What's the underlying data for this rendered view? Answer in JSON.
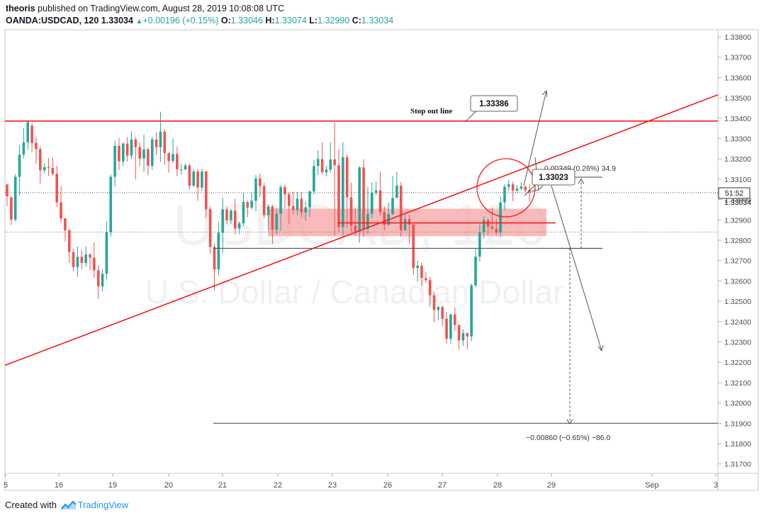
{
  "header": {
    "author": "theoris",
    "published_text": "published on TradingView.com, August 28, 2019 10:08:08 UTC",
    "symbol": "OANDA:USDCAD, 120",
    "last": "1.33034",
    "change": "+0.00196 (+0.15%)",
    "o_label": "O:",
    "o_value": "1.33046",
    "h_label": "H:",
    "h_value": "1.33074",
    "l_label": "L:",
    "l_value": "1.32990",
    "c_label": "C:",
    "c_value": "1.33034"
  },
  "watermark": {
    "symbol": "USDCAD, 120",
    "description": "U.S. Dollar / Canadian Dollar"
  },
  "footer": {
    "created_with": "Created with",
    "brand": "TradingView"
  },
  "colors": {
    "bull": "#26a69a",
    "bear": "#ef5350",
    "drawing_red": "#f21f1f",
    "zone_fill": "#f5a3a3",
    "axis_text": "#4a4a4a",
    "grid": "#f0f3fa"
  },
  "chart_data": {
    "type": "candlestick",
    "instrument": "OANDA:USDCAD",
    "timeframe": "120",
    "x_tick_labels": [
      "5",
      "16",
      "19",
      "20",
      "21",
      "22",
      "23",
      "26",
      "27",
      "28",
      "29",
      "Sep",
      "3"
    ],
    "y_range": [
      1.3164,
      1.3386
    ],
    "y_tick_labels": [
      "1.33800",
      "1.33700",
      "1.33600",
      "1.33500",
      "1.33400",
      "1.33300",
      "1.33200",
      "1.33100",
      "1.33000",
      "1.32900",
      "1.32800",
      "1.32700",
      "1.32600",
      "1.32500",
      "1.32400",
      "1.32300",
      "1.32200",
      "1.32100",
      "1.32000",
      "1.31900",
      "1.31800",
      "1.31700"
    ],
    "price_tag": "1.33034",
    "countdown_tag": "51:52",
    "candles": [
      [
        1.33074,
        1.33016,
        1.33078,
        1.32969
      ],
      [
        1.33011,
        1.32902,
        1.33018,
        1.32875
      ],
      [
        1.32902,
        1.33112,
        1.33126,
        1.32891
      ],
      [
        1.33112,
        1.33221,
        1.33268,
        1.33018
      ],
      [
        1.33221,
        1.33282,
        1.33352,
        1.33203
      ],
      [
        1.33282,
        1.3338,
        1.3339,
        1.33246
      ],
      [
        1.33364,
        1.33279,
        1.33376,
        1.33231
      ],
      [
        1.33279,
        1.33248,
        1.33307,
        1.33177
      ],
      [
        1.33248,
        1.33144,
        1.33263,
        1.33079
      ],
      [
        1.33144,
        1.33159,
        1.33179,
        1.33127
      ],
      [
        1.33159,
        1.33155,
        1.33203,
        1.33115
      ],
      [
        1.33155,
        1.33127,
        1.33208,
        1.33117
      ],
      [
        1.33127,
        1.32986,
        1.33166,
        1.32965
      ],
      [
        1.32986,
        1.32907,
        1.33067,
        1.32888
      ],
      [
        1.32907,
        1.32849,
        1.3291,
        1.32794
      ],
      [
        1.32849,
        1.32742,
        1.32858,
        1.32689
      ],
      [
        1.32742,
        1.32668,
        1.32756,
        1.32646
      ],
      [
        1.32668,
        1.32718,
        1.3277,
        1.32619
      ],
      [
        1.32718,
        1.32688,
        1.32753,
        1.32658
      ],
      [
        1.32688,
        1.3273,
        1.32771,
        1.3267
      ],
      [
        1.3273,
        1.32714,
        1.32737,
        1.32652
      ],
      [
        1.32714,
        1.32652,
        1.3279,
        1.32615
      ],
      [
        1.32652,
        1.32573,
        1.32678,
        1.32511
      ],
      [
        1.32573,
        1.32635,
        1.32657,
        1.32549
      ],
      [
        1.32635,
        1.32839,
        1.32894,
        1.32606
      ],
      [
        1.32839,
        1.33112,
        1.33124,
        1.32817
      ],
      [
        1.33112,
        1.33264,
        1.3329,
        1.33063
      ],
      [
        1.33264,
        1.33188,
        1.33302,
        1.33146
      ],
      [
        1.33188,
        1.33275,
        1.33281,
        1.33165
      ],
      [
        1.33275,
        1.33216,
        1.33307,
        1.33186
      ],
      [
        1.33216,
        1.33295,
        1.33336,
        1.33199
      ],
      [
        1.33295,
        1.33258,
        1.33307,
        1.33099
      ],
      [
        1.33258,
        1.33202,
        1.33281,
        1.33165
      ],
      [
        1.33202,
        1.33247,
        1.33319,
        1.33136
      ],
      [
        1.33247,
        1.33166,
        1.33256,
        1.33119
      ],
      [
        1.33166,
        1.33295,
        1.33309,
        1.33146
      ],
      [
        1.33295,
        1.33257,
        1.33331,
        1.33218
      ],
      [
        1.33257,
        1.33334,
        1.33432,
        1.33186
      ],
      [
        1.33334,
        1.33229,
        1.33345,
        1.33171
      ],
      [
        1.33229,
        1.3319,
        1.33231,
        1.33131
      ],
      [
        1.3319,
        1.33224,
        1.33301,
        1.33179
      ],
      [
        1.33224,
        1.33148,
        1.33259,
        1.33116
      ],
      [
        1.33148,
        1.33148,
        1.33177,
        1.33123
      ],
      [
        1.33148,
        1.33168,
        1.33178,
        1.33145
      ],
      [
        1.33168,
        1.33068,
        1.33177,
        1.33051
      ],
      [
        1.33068,
        1.33138,
        1.33149,
        1.33062
      ],
      [
        1.33138,
        1.33059,
        1.33151,
        1.32994
      ],
      [
        1.33059,
        1.33138,
        1.33152,
        1.33041
      ],
      [
        1.33138,
        1.32953,
        1.33142,
        1.32909
      ],
      [
        1.32953,
        1.32767,
        1.32963,
        1.32735
      ],
      [
        1.32767,
        1.32656,
        1.32783,
        1.32553
      ],
      [
        1.32656,
        1.32837,
        1.32891,
        1.32628
      ],
      [
        1.32837,
        1.32951,
        1.3301,
        1.32737
      ],
      [
        1.32951,
        1.32898,
        1.32962,
        1.32879
      ],
      [
        1.32898,
        1.32946,
        1.32955,
        1.32881
      ],
      [
        1.32946,
        1.32858,
        1.33003,
        1.32829
      ],
      [
        1.32858,
        1.32883,
        1.32892,
        1.3283
      ],
      [
        1.32883,
        1.32988,
        1.33033,
        1.3287
      ],
      [
        1.32988,
        1.3296,
        1.32996,
        1.32912
      ],
      [
        1.3296,
        1.32994,
        1.33037,
        1.32951
      ],
      [
        1.32994,
        1.33103,
        1.33122,
        1.32941
      ],
      [
        1.33103,
        1.33066,
        1.33128,
        1.33012
      ],
      [
        1.33066,
        1.32923,
        1.33083,
        1.3291
      ],
      [
        1.32923,
        1.32965,
        1.32976,
        1.32847
      ],
      [
        1.32965,
        1.32851,
        1.32975,
        1.32782
      ],
      [
        1.32851,
        1.3293,
        1.32956,
        1.32832
      ],
      [
        1.3293,
        1.33061,
        1.33072,
        1.32845
      ],
      [
        1.33061,
        1.33026,
        1.33071,
        1.32958
      ],
      [
        1.33026,
        1.32968,
        1.33035,
        1.32881
      ],
      [
        1.32968,
        1.32948,
        1.33039,
        1.32928
      ],
      [
        1.32948,
        1.33004,
        1.33036,
        1.32923
      ],
      [
        1.33004,
        1.32937,
        1.33037,
        1.32914
      ],
      [
        1.32937,
        1.32962,
        1.32992,
        1.32894
      ],
      [
        1.32962,
        1.3304,
        1.33045,
        1.32914
      ],
      [
        1.3304,
        1.33165,
        1.33195,
        1.33024
      ],
      [
        1.33165,
        1.33199,
        1.33243,
        1.33121
      ],
      [
        1.33199,
        1.33134,
        1.33282,
        1.33125
      ],
      [
        1.33134,
        1.33147,
        1.33164,
        1.33114
      ],
      [
        1.33147,
        1.33197,
        1.33282,
        1.33132
      ],
      [
        1.33197,
        1.33169,
        1.33379,
        1.32822
      ],
      [
        1.33169,
        1.32864,
        1.33247,
        1.32838
      ],
      [
        1.32864,
        1.33208,
        1.33282,
        1.32822
      ],
      [
        1.33208,
        1.33011,
        1.33223,
        1.32862
      ],
      [
        1.33011,
        1.32871,
        1.33082,
        1.32843
      ],
      [
        1.32871,
        1.32843,
        1.32957,
        1.32823
      ],
      [
        1.32843,
        1.33158,
        1.33164,
        1.32787
      ],
      [
        1.33158,
        1.32856,
        1.33198,
        1.32814
      ],
      [
        1.32856,
        1.3293,
        1.33061,
        1.32833
      ],
      [
        1.3293,
        1.33033,
        1.33084,
        1.32906
      ],
      [
        1.33033,
        1.33045,
        1.33089,
        1.33021
      ],
      [
        1.33045,
        1.32938,
        1.33136,
        1.32919
      ],
      [
        1.32938,
        1.32875,
        1.32965,
        1.32849
      ],
      [
        1.32875,
        1.32929,
        1.32986,
        1.32874
      ],
      [
        1.32929,
        1.33008,
        1.33116,
        1.32923
      ],
      [
        1.33008,
        1.33068,
        1.33137,
        1.33027
      ],
      [
        1.33068,
        1.32848,
        1.33086,
        1.32815
      ],
      [
        1.32848,
        1.32904,
        1.32931,
        1.32868
      ],
      [
        1.32904,
        1.32877,
        1.32924,
        1.32784
      ],
      [
        1.32877,
        1.32663,
        1.32881,
        1.32628
      ],
      [
        1.32663,
        1.32675,
        1.32701,
        1.32597
      ],
      [
        1.32675,
        1.32614,
        1.3269,
        1.32575
      ],
      [
        1.32614,
        1.32604,
        1.32643,
        1.32592
      ],
      [
        1.32604,
        1.32529,
        1.32621,
        1.32474
      ],
      [
        1.32529,
        1.32457,
        1.32547,
        1.32396
      ],
      [
        1.32457,
        1.32472,
        1.32476,
        1.32407
      ],
      [
        1.32472,
        1.32414,
        1.32478,
        1.32376
      ],
      [
        1.32414,
        1.32316,
        1.32448,
        1.32291
      ],
      [
        1.32316,
        1.32435,
        1.32439,
        1.32288
      ],
      [
        1.32435,
        1.32383,
        1.32471,
        1.32353
      ],
      [
        1.32383,
        1.32307,
        1.32386,
        1.32262
      ],
      [
        1.32307,
        1.32343,
        1.32362,
        1.32279
      ],
      [
        1.32343,
        1.32327,
        1.32347,
        1.32264
      ],
      [
        1.32327,
        1.32578,
        1.32587,
        1.32304
      ],
      [
        1.32578,
        1.32719,
        1.32762,
        1.32568
      ],
      [
        1.32719,
        1.32839,
        1.32876,
        1.32696
      ],
      [
        1.32839,
        1.32898,
        1.32917,
        1.32808
      ],
      [
        1.32898,
        1.32867,
        1.32906,
        1.32825
      ],
      [
        1.32867,
        1.32856,
        1.3296,
        1.32846
      ],
      [
        1.32856,
        1.32838,
        1.32902,
        1.32823
      ],
      [
        1.32838,
        1.32986,
        1.33016,
        1.32814
      ],
      [
        1.32986,
        1.33063,
        1.33075,
        1.32947
      ],
      [
        1.33063,
        1.33075,
        1.33098,
        1.33042
      ],
      [
        1.33075,
        1.33044,
        1.33089,
        1.32992
      ],
      [
        1.33044,
        1.33053,
        1.33073,
        1.33032
      ],
      [
        1.33053,
        1.33064,
        1.33087,
        1.33045
      ],
      [
        1.33064,
        1.33046,
        1.33068,
        1.33037
      ],
      [
        1.33046,
        1.33034,
        1.33074,
        1.3299
      ]
    ],
    "annotations": {
      "stop_label": "Stop out line",
      "stop_price": "1.33386",
      "current_price_callout": "1.33023",
      "upper_measure": "0.00349 (0.26%) 34.9",
      "lower_measure": "−0.00860 (−0.65%) −86.0",
      "horizontal_resistance": 1.33386,
      "zone_top": 1.32955,
      "zone_bottom": 1.3282,
      "zone_midline": 1.32885,
      "support_line": 1.3276,
      "target_line": 1.319,
      "trendline_start": [
        0,
        1.32185
      ],
      "trendline_end": [
        1013,
        1.33515
      ]
    }
  }
}
